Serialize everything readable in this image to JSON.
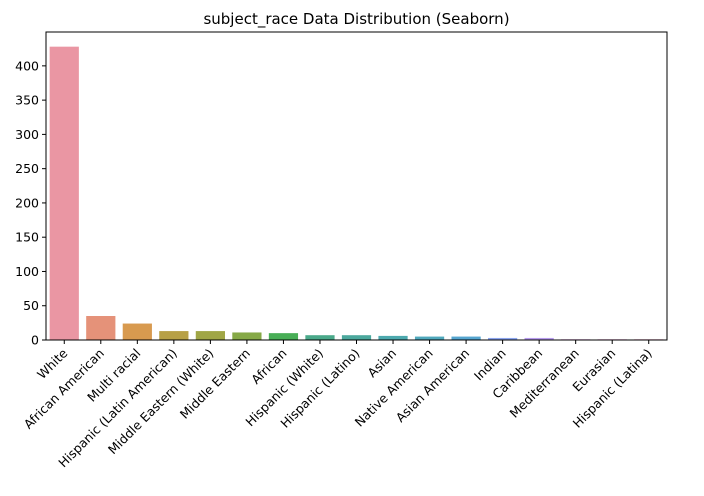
{
  "chart_data": {
    "type": "bar",
    "title": "subject_race Data Distribution (Seaborn)",
    "xlabel": "",
    "ylabel": "",
    "categories": [
      "White",
      "African American",
      "Multi racial",
      "Hispanic (Latin American)",
      "Middle Eastern (White)",
      "Middle Eastern",
      "African",
      "Hispanic (White)",
      "Hispanic (Latino)",
      "Asian",
      "Native American",
      "Asian American",
      "Indian",
      "Caribbean",
      "Mediterranean",
      "Eurasian",
      "Hispanic (Latina)"
    ],
    "values": [
      428,
      35,
      24,
      13,
      13,
      11,
      10,
      7,
      7,
      6,
      5,
      5,
      3,
      3,
      1,
      1,
      1
    ],
    "colors": [
      "#ea96a3",
      "#e59279",
      "#d89a4f",
      "#b7a046",
      "#a0a646",
      "#86a947",
      "#48ae56",
      "#4aa98a",
      "#4ba89d",
      "#4da9ae",
      "#50a8bc",
      "#55a5cf",
      "#8ba5ee",
      "#b79bed",
      "#e089e3",
      "#e98bd2",
      "#eb91bd"
    ],
    "ylim": [
      0,
      449.4
    ],
    "yticks": [
      0,
      50,
      100,
      150,
      200,
      250,
      300,
      350,
      400
    ],
    "xtick_rotation": 45,
    "grid": false
  }
}
